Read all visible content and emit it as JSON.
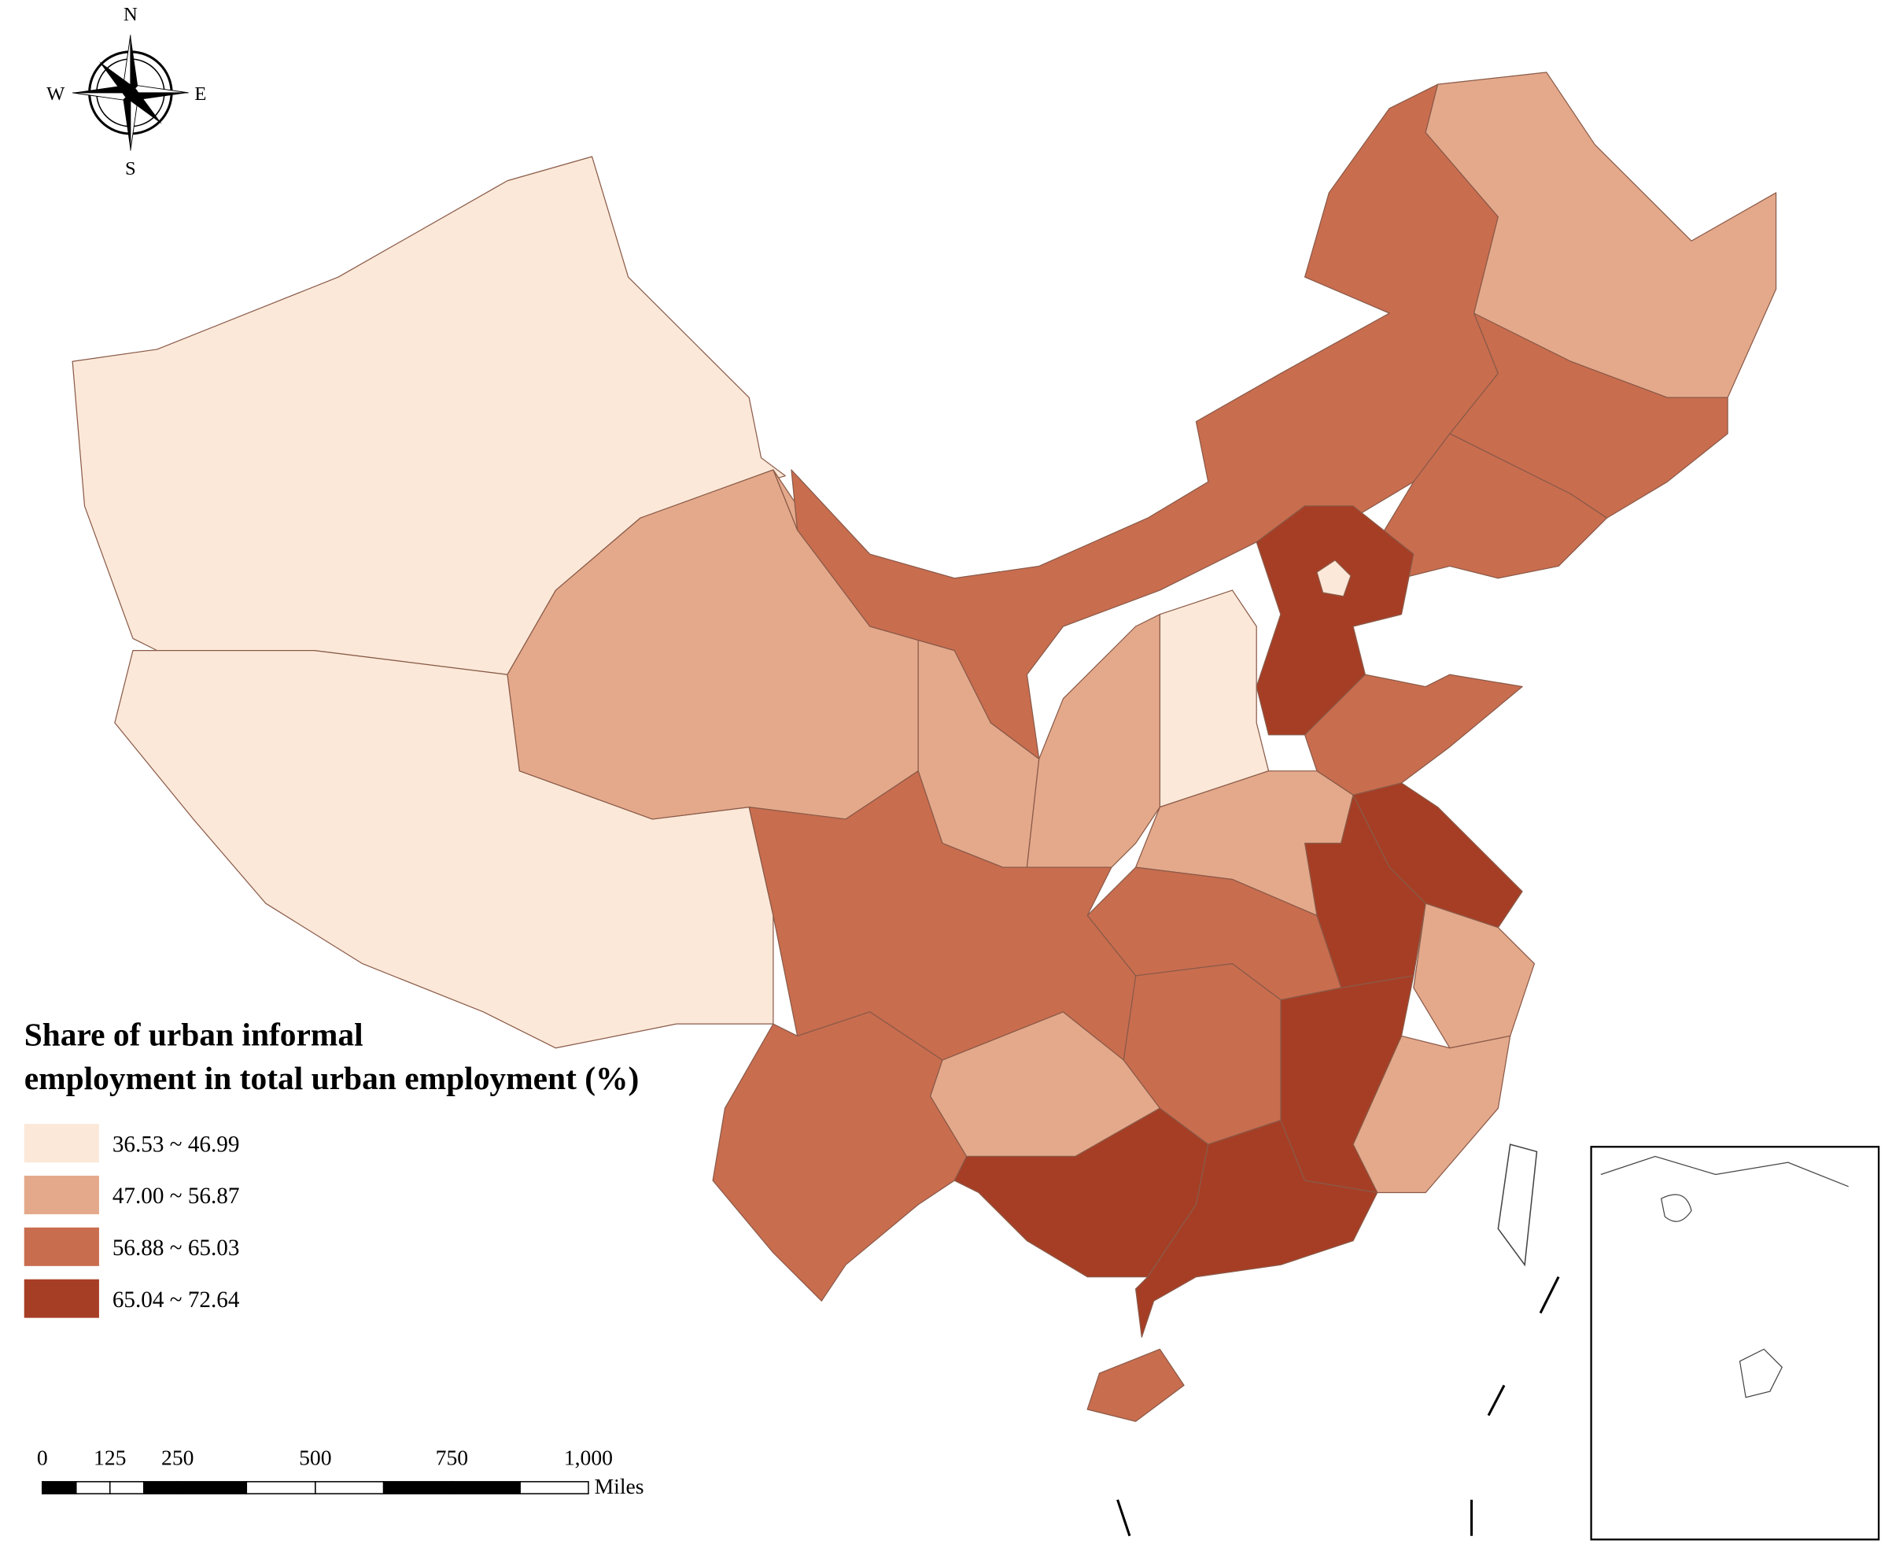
{
  "compass": {
    "north": "N",
    "south": "S",
    "west": "W",
    "east": "E"
  },
  "legend": {
    "title_lines": [
      "Share of urban informal",
      "employment in total urban employment (%)"
    ],
    "classes": [
      {
        "label": "36.53 ~ 46.99",
        "color": "#fbe8d8"
      },
      {
        "label": "47.00 ~ 56.87",
        "color": "#e4a98b"
      },
      {
        "label": "56.88 ~ 65.03",
        "color": "#c96d4f"
      },
      {
        "label": "65.04 ~ 72.64",
        "color": "#a63e25"
      }
    ]
  },
  "scale_bar": {
    "labels": [
      "0",
      "125",
      "250",
      "500",
      "750",
      "1,000"
    ],
    "unit": "Miles"
  }
}
